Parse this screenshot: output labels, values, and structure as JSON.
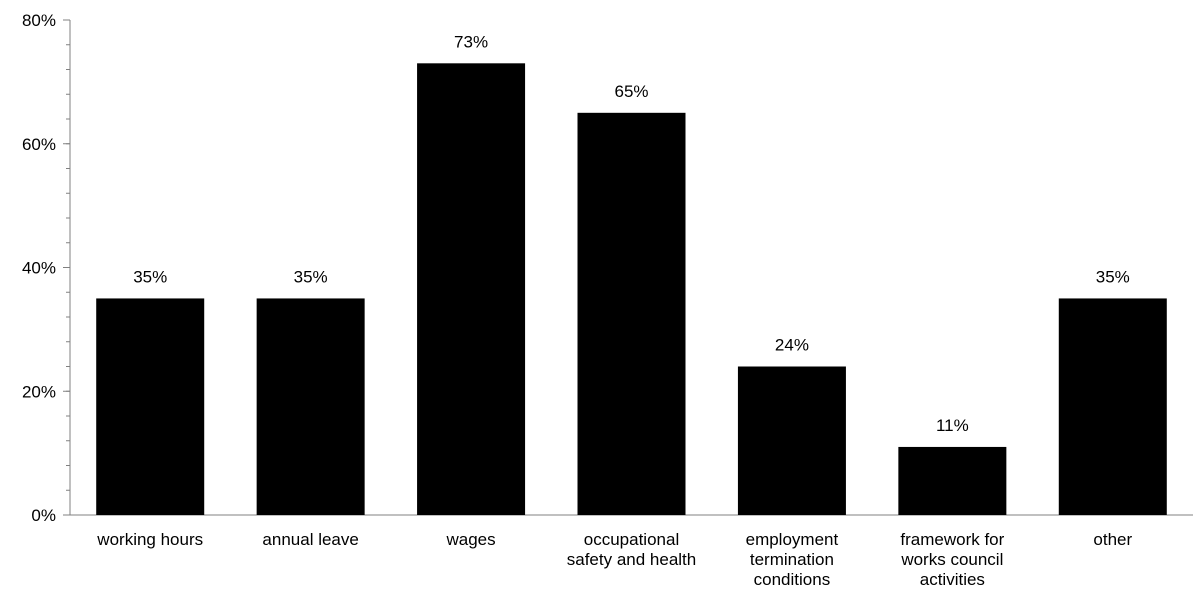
{
  "chart_data": {
    "type": "bar",
    "categories": [
      [
        "working hours"
      ],
      [
        "annual leave"
      ],
      [
        "wages"
      ],
      [
        "occupational",
        "safety and health"
      ],
      [
        "employment",
        "termination",
        "conditions"
      ],
      [
        "framework for",
        "works council",
        "activities"
      ],
      [
        "other"
      ]
    ],
    "values": [
      35,
      35,
      73,
      65,
      24,
      11,
      35
    ],
    "value_labels": [
      "35%",
      "35%",
      "73%",
      "65%",
      "24%",
      "11%",
      "35%"
    ],
    "title": "",
    "xlabel": "",
    "ylabel": "",
    "ylim": [
      0,
      80
    ],
    "yticks": [
      0,
      20,
      40,
      60,
      80
    ],
    "ytick_labels": [
      "0%",
      "20%",
      "40%",
      "60%",
      "80%"
    ],
    "minor_tick_step": 4,
    "grid": false,
    "legend": "none",
    "bar_color": "#000000"
  }
}
